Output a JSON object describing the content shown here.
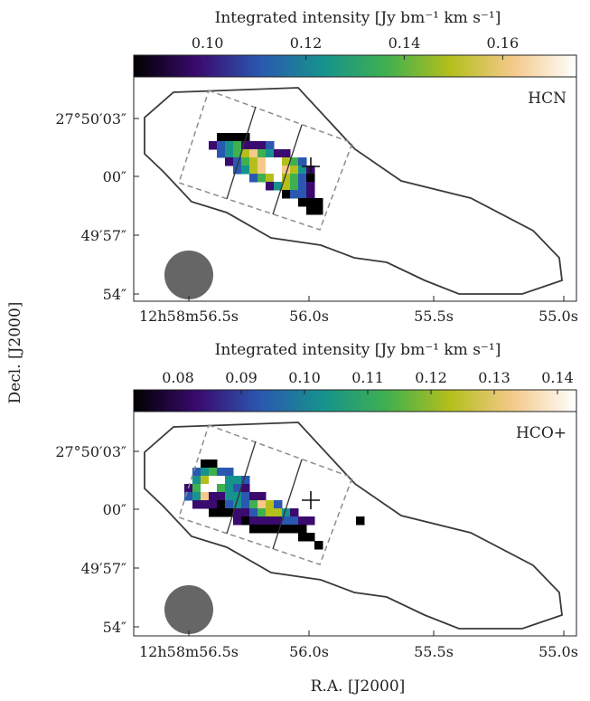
{
  "figure": {
    "ylabel": "Decl.  [J2000]",
    "xlabel": "R.A.  [J2000]"
  },
  "chart_data": [
    {
      "type": "heatmap",
      "line": "HCN",
      "colorbar_label": "Integrated intensity  [Jy bm⁻¹ km s⁻¹]",
      "colorbar_range": [
        0.085,
        0.175
      ],
      "colorbar_ticks": [
        0.1,
        0.12,
        0.14,
        0.16
      ],
      "colorbar_tick_labels": [
        "0.10",
        "0.12",
        "0.14",
        "0.16"
      ],
      "colormap": [
        "#000000",
        "#3a0a6e",
        "#2a58b0",
        "#16938d",
        "#3fb04f",
        "#b4bf1c",
        "#f4c98a",
        "#ffffff"
      ],
      "x_tick_labels": [
        "12h58m56.5s",
        "56.0s",
        "55.5s",
        "55.0s"
      ],
      "y_tick_labels": [
        "27°50′03″",
        "00″",
        "49′57″",
        "54″"
      ]
    },
    {
      "type": "heatmap",
      "line": "HCO+",
      "colorbar_label": "Integrated intensity  [Jy bm⁻¹ km s⁻¹]",
      "colorbar_range": [
        0.073,
        0.143
      ],
      "colorbar_ticks": [
        0.08,
        0.09,
        0.1,
        0.11,
        0.12,
        0.13,
        0.14
      ],
      "colorbar_tick_labels": [
        "0.08",
        "0.09",
        "0.10",
        "0.11",
        "0.12",
        "0.13",
        "0.14"
      ],
      "colormap": [
        "#000000",
        "#3a0a6e",
        "#2a58b0",
        "#16938d",
        "#3fb04f",
        "#b4bf1c",
        "#f4c98a",
        "#ffffff"
      ],
      "x_tick_labels": [
        "12h58m56.5s",
        "56.0s",
        "55.5s",
        "55.0s"
      ],
      "y_tick_labels": [
        "27°50′03″",
        "00″",
        "49′57″",
        "54″"
      ]
    }
  ],
  "colors": {
    "axis": "#222222",
    "footprint": "#3a3a3a",
    "dashed_box": "#8c8c8c",
    "beam": "#666666"
  }
}
